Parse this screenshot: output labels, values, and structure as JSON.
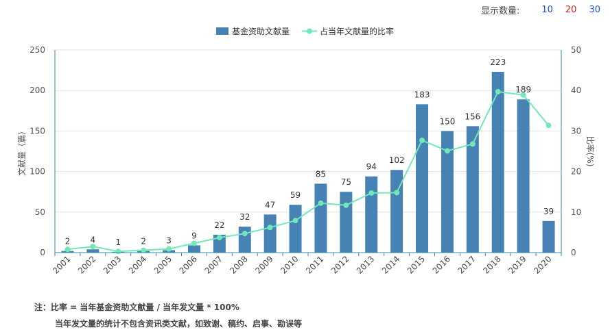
{
  "display_count": {
    "label": "显示数量:",
    "options": [
      {
        "value": "10",
        "color": "#1a4fd6"
      },
      {
        "value": "20",
        "color": "#e01b1b"
      },
      {
        "value": "30",
        "color": "#1a4fd6"
      }
    ]
  },
  "chart_data": {
    "type": "bar+line",
    "categories": [
      "2001",
      "2002",
      "2003",
      "2004",
      "2005",
      "2006",
      "2007",
      "2008",
      "2009",
      "2010",
      "2011",
      "2012",
      "2013",
      "2014",
      "2015",
      "2016",
      "2017",
      "2018",
      "2019",
      "2020"
    ],
    "series": [
      {
        "name": "基金资助文献量",
        "type": "bar",
        "axis": "left",
        "color": "#4682b4",
        "values": [
          2,
          4,
          1,
          2,
          3,
          9,
          22,
          32,
          47,
          59,
          85,
          75,
          94,
          102,
          183,
          150,
          156,
          223,
          189,
          39
        ]
      },
      {
        "name": "占当年文献量的比率",
        "type": "line",
        "axis": "right",
        "color": "#72e8b9",
        "values": [
          0.8,
          1.5,
          0.3,
          0.6,
          0.9,
          2.3,
          3.7,
          4.7,
          6.2,
          7.9,
          12.2,
          11.7,
          14.7,
          14.8,
          27.7,
          25.1,
          26.8,
          39.7,
          38.9,
          31.4
        ]
      }
    ],
    "y_left": {
      "label": "文献量（篇）",
      "min": 0,
      "max": 250,
      "ticks": [
        0,
        50,
        100,
        150,
        200,
        250
      ]
    },
    "y_right": {
      "label": "比率(%)",
      "min": 0,
      "max": 50,
      "ticks": [
        0,
        10,
        20,
        30,
        40,
        50
      ]
    },
    "grid": true,
    "legend_position": "top-center"
  },
  "note": {
    "line1": "注：比率 = 当年基金资助文献量 / 当年发文量 * 100%",
    "line2": "当年发文量的统计不包含资讯类文献，如致谢、稿约、启事、勘误等"
  }
}
